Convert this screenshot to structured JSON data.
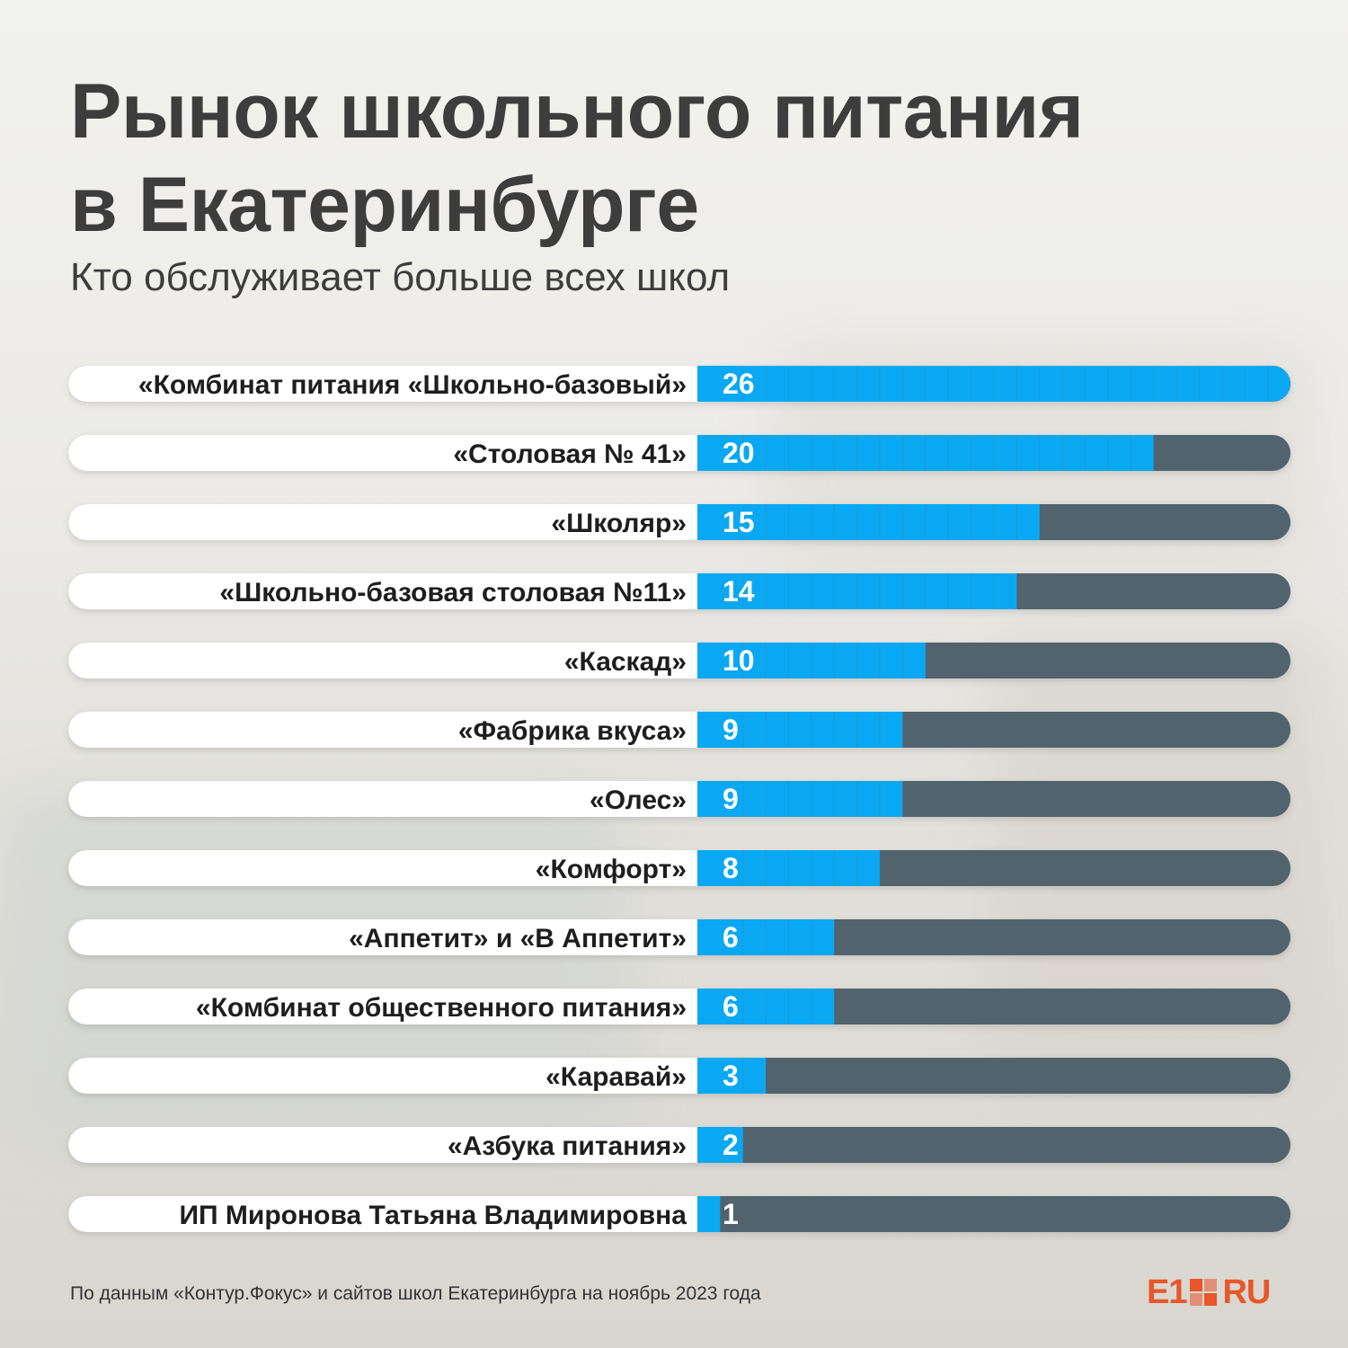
{
  "header": {
    "title_line1": "Рынок школьного питания",
    "title_line2": "в Екатеринбурге",
    "subtitle": "Кто обслуживает больше всех школ"
  },
  "footer": {
    "source": "По данным «Контур.Фокус» и сайтов школ Екатеринбурга на ноябрь 2023 года",
    "logo_left": "E1",
    "logo_right": "RU"
  },
  "colors": {
    "filled": "#0aa8f2",
    "empty": "#51636d",
    "label_bg": "#ffffff",
    "text": "#1e1e1e",
    "brand": "#e8562a"
  },
  "chart_data": {
    "type": "bar",
    "orientation": "horizontal",
    "categories": [
      "«Комбинат питания «Школьно-базовый»",
      "«Столовая № 41»",
      "«Школяр»",
      "«Школьно-базовая столовая №11»",
      "«Каскад»",
      "«Фабрика вкуса»",
      "«Олес»",
      "«Комфорт»",
      "«Аппетит»  и «В Аппетит»",
      "«Комбинат общественного питания»",
      "«Каравай»",
      "«Азбука питания»",
      "ИП Миронова Татьяна Владимировна"
    ],
    "values": [
      26,
      20,
      15,
      14,
      10,
      9,
      9,
      8,
      6,
      6,
      3,
      2,
      1
    ],
    "xlim": [
      0,
      26
    ],
    "grid": false,
    "legend": "none"
  }
}
